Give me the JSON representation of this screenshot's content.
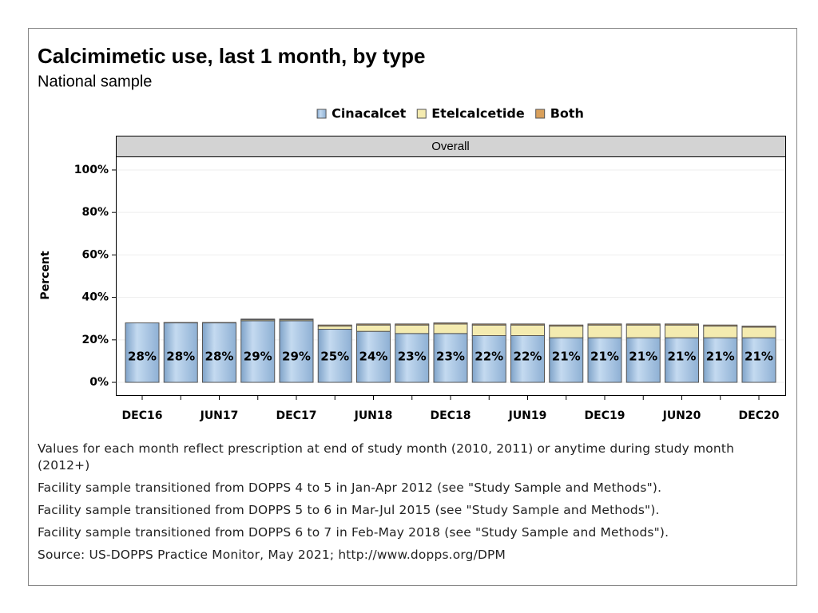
{
  "chart_data": {
    "type": "stacked_bar",
    "title": "Calcimimetic use, last 1 month, by type",
    "subtitle": "National sample",
    "panel_label": "Overall",
    "y_label": "Percent",
    "categories": [
      "DEC16",
      null,
      "JUN17",
      null,
      "DEC17",
      null,
      "JUN18",
      null,
      "DEC18",
      null,
      "JUN19",
      null,
      "DEC19",
      null,
      "JUN20",
      null,
      "DEC20"
    ],
    "series": [
      {
        "name": "Cinacalcet",
        "color": "#a9c6e3",
        "values": [
          28,
          28,
          28,
          29,
          29,
          25,
          24,
          23,
          23,
          22,
          22,
          21,
          21,
          21,
          21,
          21,
          21
        ],
        "value_labels": [
          "28%",
          "28%",
          "28%",
          "29%",
          "29%",
          "25%",
          "24%",
          "23%",
          "23%",
          "22%",
          "22%",
          "21%",
          "21%",
          "21%",
          "21%",
          "21%",
          "21%"
        ]
      },
      {
        "name": "Etelcalcetide",
        "color": "#f4ebb0",
        "values": [
          0,
          0,
          0,
          0.5,
          0.5,
          1.5,
          3,
          4,
          4.5,
          5,
          5,
          5.5,
          6,
          6,
          6,
          5.5,
          5
        ]
      },
      {
        "name": "Both",
        "color": "#d9a05b",
        "values": [
          0,
          0.2,
          0.2,
          0.3,
          0.3,
          0.5,
          0.5,
          0.5,
          0.5,
          0.5,
          0.5,
          0.5,
          0.5,
          0.5,
          0.5,
          0.5,
          0.5
        ]
      }
    ],
    "ylim": [
      -6,
      106
    ],
    "yticks": [
      {
        "value": 0,
        "label": "0%"
      },
      {
        "value": 20,
        "label": "20%"
      },
      {
        "value": 40,
        "label": "40%"
      },
      {
        "value": 60,
        "label": "60%"
      },
      {
        "value": 80,
        "label": "80%"
      },
      {
        "value": 100,
        "label": "100%"
      }
    ],
    "grid": true,
    "legend": "top",
    "notes": [
      "Values for each month reflect prescription at end of study month (2010, 2011) or anytime during study month (2012+)",
      "Facility sample transitioned from DOPPS 4 to 5 in Jan-Apr 2012 (see \"Study Sample and Methods\").",
      "Facility sample transitioned from DOPPS 5 to 6 in Mar-Jul 2015 (see \"Study Sample and Methods\").",
      "Facility sample transitioned from DOPPS 6 to 7 in Feb-May 2018 (see \"Study Sample and Methods\").",
      "Source: US-DOPPS Practice Monitor, May 2021; http://www.dopps.org/DPM"
    ]
  }
}
